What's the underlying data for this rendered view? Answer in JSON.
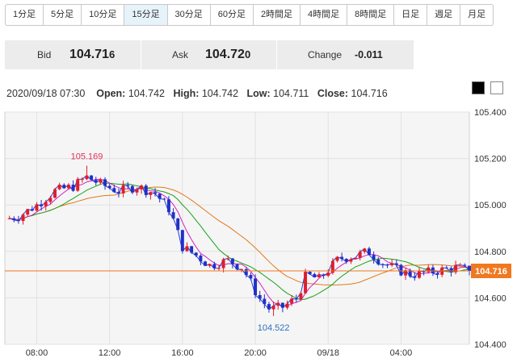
{
  "timeframes": [
    {
      "label": "1分足",
      "active": false
    },
    {
      "label": "5分足",
      "active": false
    },
    {
      "label": "10分足",
      "active": false
    },
    {
      "label": "15分足",
      "active": true
    },
    {
      "label": "30分足",
      "active": false
    },
    {
      "label": "60分足",
      "active": false
    },
    {
      "label": "2時間足",
      "active": false
    },
    {
      "label": "4時間足",
      "active": false
    },
    {
      "label": "8時間足",
      "active": false
    },
    {
      "label": "日足",
      "active": false
    },
    {
      "label": "週足",
      "active": false
    },
    {
      "label": "月足",
      "active": false
    }
  ],
  "quote": {
    "bid_label": "Bid",
    "bid_main": "104.71",
    "bid_pip": "6",
    "ask_label": "Ask",
    "ask_main": "104.72",
    "ask_pip": "0",
    "change_label": "Change",
    "change_value": "-0.011"
  },
  "ohlc": {
    "datetime": "2020/09/18 07:30",
    "open_label": "Open:",
    "open": "104.742",
    "high_label": "High:",
    "high": "104.742",
    "low_label": "Low:",
    "low": "104.711",
    "close_label": "Close:",
    "close": "104.716"
  },
  "chart_data": {
    "type": "candlestick",
    "ylim": [
      104.4,
      105.4
    ],
    "yticks": [
      "105.400",
      "105.200",
      "105.000",
      "104.800",
      "104.600",
      "104.400"
    ],
    "xticks": [
      {
        "label": "08:00",
        "t": 8
      },
      {
        "label": "12:00",
        "t": 12
      },
      {
        "label": "16:00",
        "t": 16
      },
      {
        "label": "20:00",
        "t": 20
      },
      {
        "label": "09/18",
        "t": 24
      },
      {
        "label": "04:00",
        "t": 28
      }
    ],
    "time_range": [
      6.25,
      31.75
    ],
    "candle_interval_hours": 0.25,
    "current_price": 104.716,
    "current_price_label": "104.716",
    "annotations": [
      {
        "label": "105.169",
        "t": 10.75,
        "price": 105.169,
        "position": "above",
        "color": "#e0305a"
      },
      {
        "label": "104.522",
        "t": 21.0,
        "price": 104.522,
        "position": "below",
        "color": "#2f6fc0"
      }
    ],
    "series": [
      {
        "name": "",
        "color": "#1f3fd8",
        "role": "close"
      },
      {
        "name": "",
        "color": "#d020c0",
        "role": "ma-short"
      },
      {
        "name": "",
        "color": "#1aa01a",
        "role": "ma-mid"
      },
      {
        "name": "",
        "color": "#e07a18",
        "role": "ma-long"
      }
    ],
    "colors": {
      "up": "#e01c2c",
      "down": "#2030c8",
      "price_line": "#f07820",
      "price_tag": "#f07820"
    },
    "key_points": [
      [
        6.3,
        104.94
      ],
      [
        7.0,
        104.95
      ],
      [
        8.0,
        105.0
      ],
      [
        9.0,
        105.06
      ],
      [
        10.0,
        105.08
      ],
      [
        10.75,
        105.12
      ],
      [
        11.5,
        105.09
      ],
      [
        12.5,
        105.06
      ],
      [
        13.5,
        105.08
      ],
      [
        14.5,
        105.05
      ],
      [
        15.3,
        104.98
      ],
      [
        16.0,
        104.82
      ],
      [
        16.8,
        104.78
      ],
      [
        17.5,
        104.74
      ],
      [
        18.5,
        104.76
      ],
      [
        19.3,
        104.73
      ],
      [
        20.2,
        104.6
      ],
      [
        20.8,
        104.55
      ],
      [
        21.5,
        104.56
      ],
      [
        22.3,
        104.6
      ],
      [
        22.8,
        104.7
      ],
      [
        23.5,
        104.68
      ],
      [
        24.0,
        104.72
      ],
      [
        24.6,
        104.77
      ],
      [
        25.5,
        104.78
      ],
      [
        26.2,
        104.8
      ],
      [
        27.0,
        104.75
      ],
      [
        27.8,
        104.72
      ],
      [
        28.6,
        104.7
      ],
      [
        29.5,
        104.71
      ],
      [
        30.3,
        104.72
      ],
      [
        31.0,
        104.73
      ],
      [
        31.75,
        104.716
      ]
    ]
  }
}
